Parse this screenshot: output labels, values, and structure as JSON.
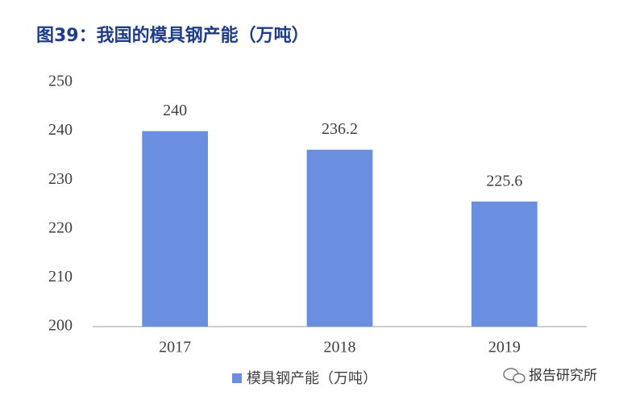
{
  "chart_data": {
    "type": "bar",
    "title": "图39：我国的模具钢产能（万吨）",
    "categories": [
      "2017",
      "2018",
      "2019"
    ],
    "series": [
      {
        "name": "模具钢产能（万吨）",
        "color": "#6b8fe0",
        "values": [
          240,
          236.2,
          225.6
        ]
      }
    ],
    "ylim": [
      200,
      250
    ],
    "yticks": [
      200,
      210,
      220,
      230,
      240,
      250
    ],
    "grid": false,
    "legend": "bottom",
    "watermark": "报告研究所"
  }
}
